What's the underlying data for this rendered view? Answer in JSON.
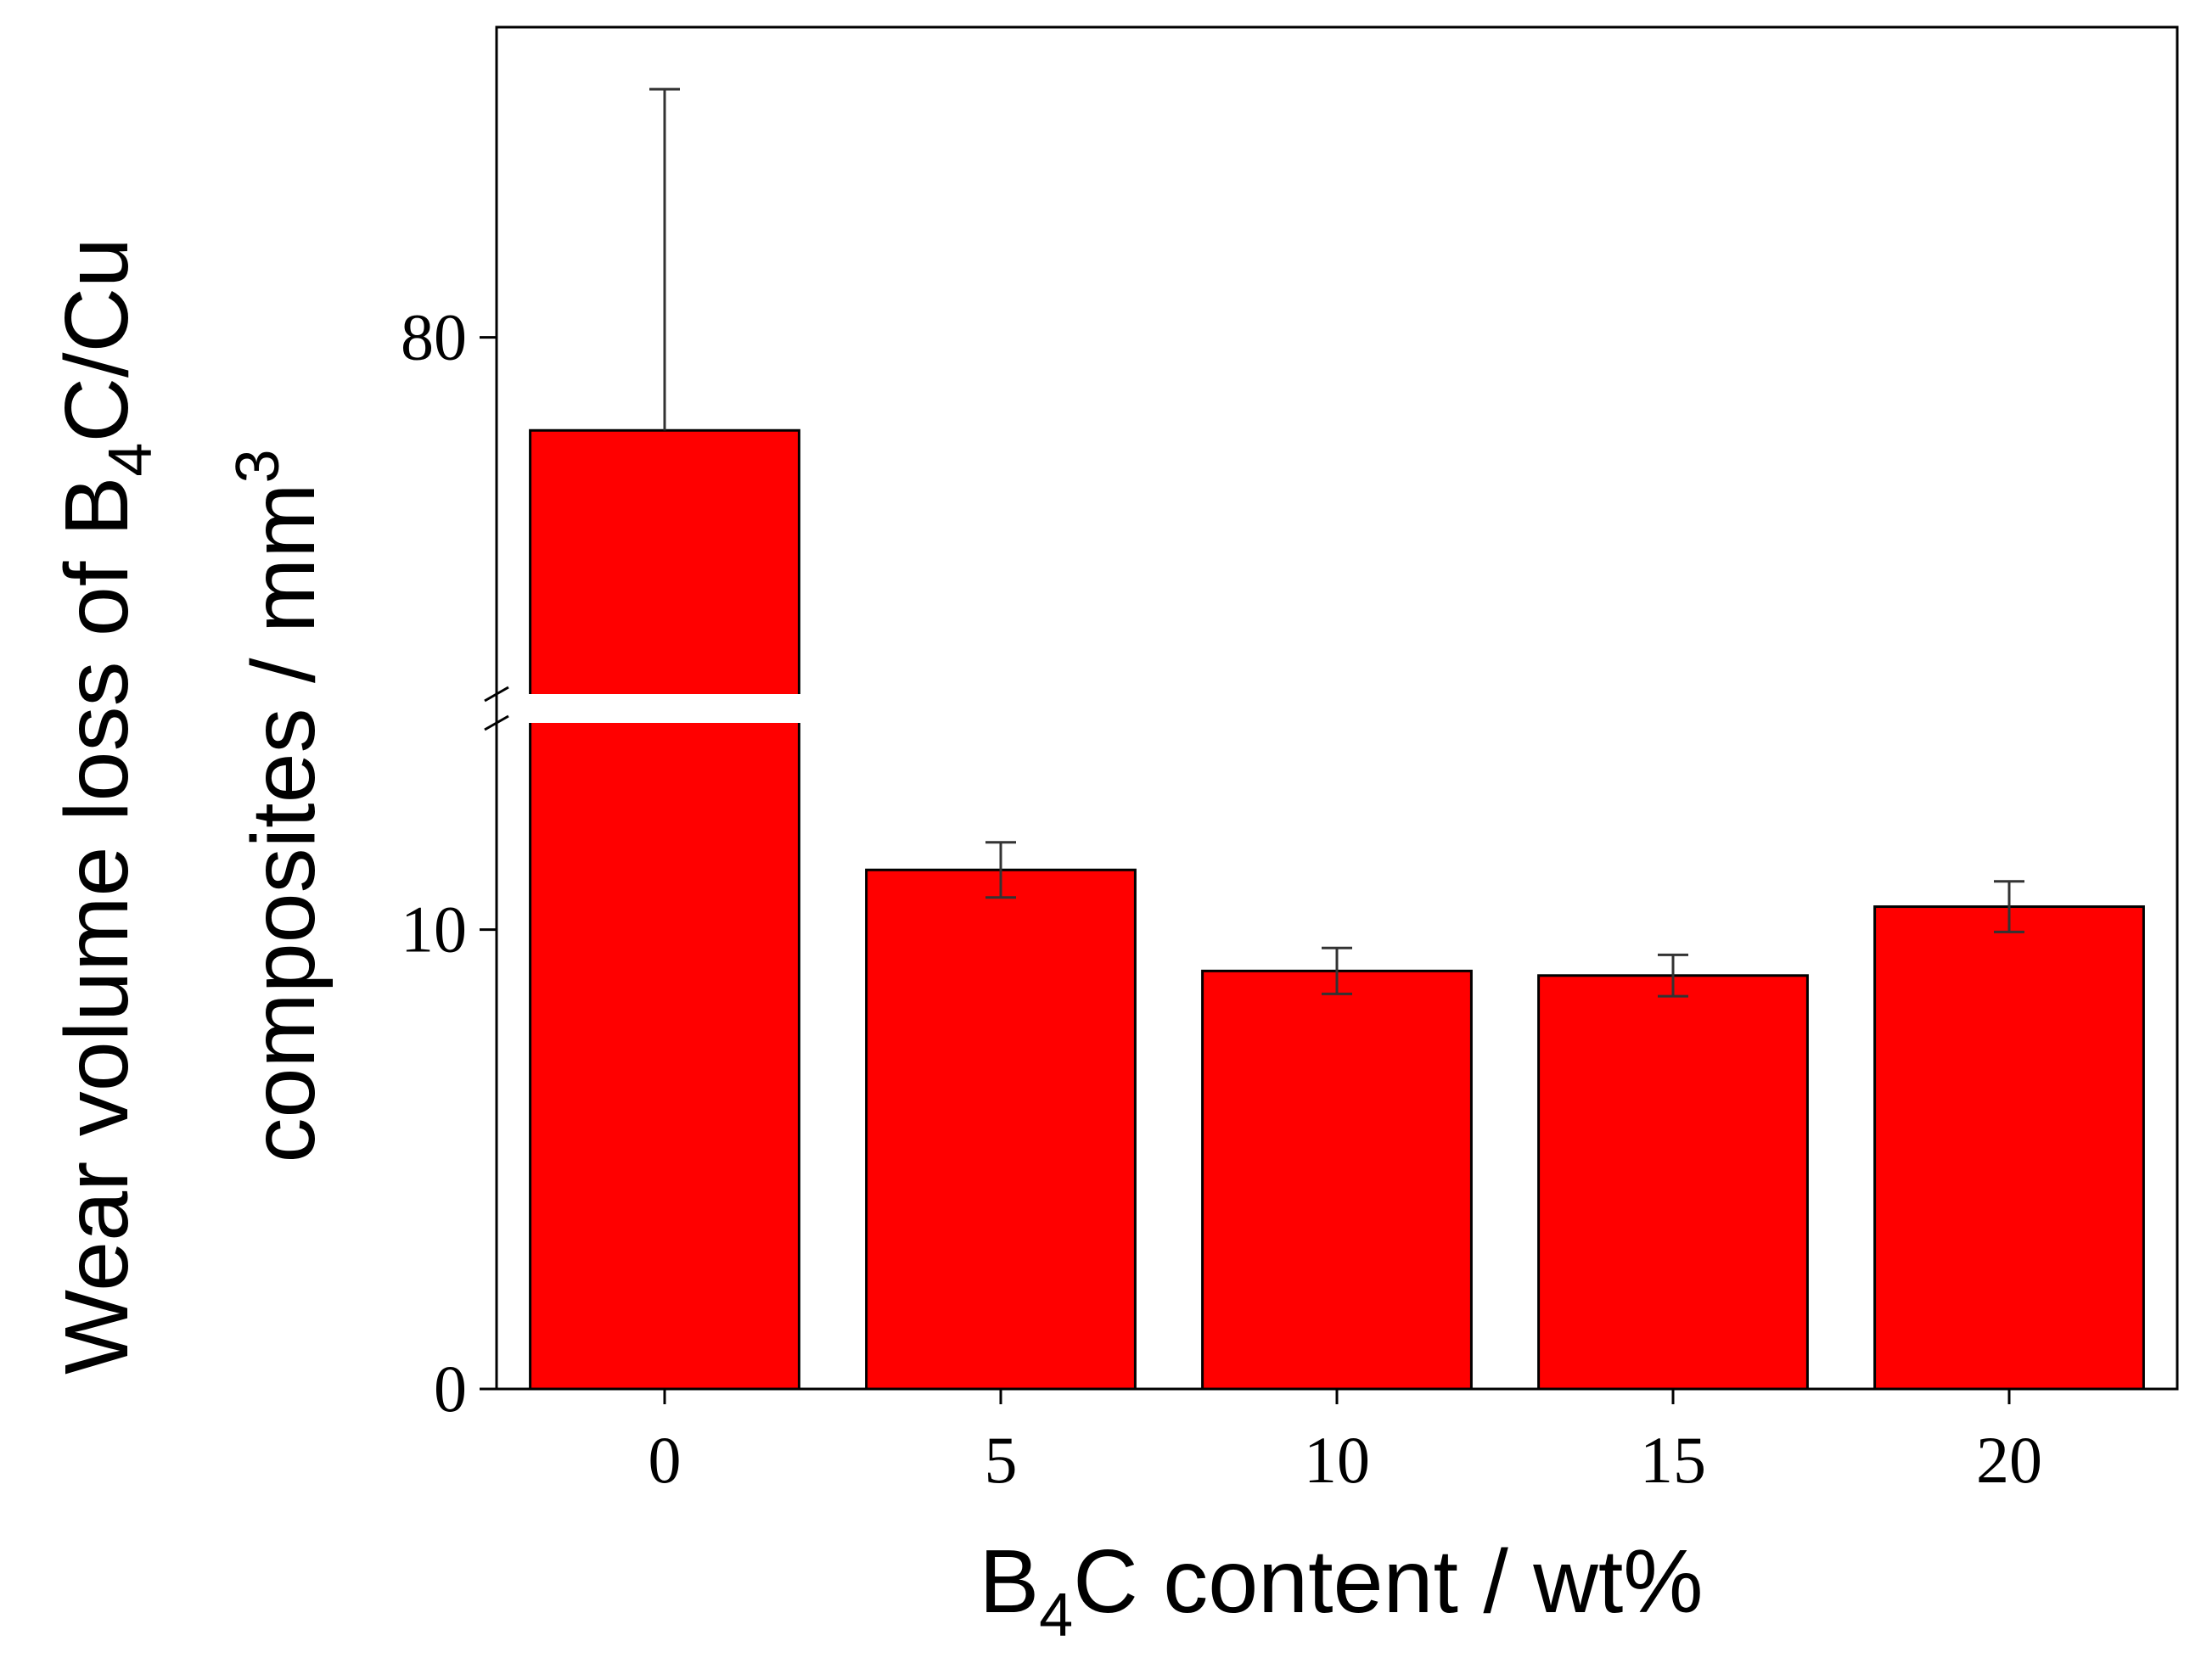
{
  "chart_data": {
    "type": "bar",
    "categories": [
      "0",
      "5",
      "10",
      "15",
      "20"
    ],
    "values": [
      74,
      11.3,
      9.1,
      9.0,
      10.5
    ],
    "errors": [
      22,
      0.6,
      0.5,
      0.45,
      0.55
    ],
    "bar_color": "#ff0000",
    "axis_break": {
      "lower_max": 14.5,
      "upper_min": 57
    },
    "ylim_lower": [
      0,
      14.5
    ],
    "ylim_upper": [
      57,
      100
    ],
    "yticks_lower": [
      0,
      10
    ],
    "yticks_upper": [
      80
    ],
    "ytick_labels": [
      "0",
      "10",
      "80"
    ],
    "xlabel": {
      "prefix": "B",
      "sub": "4",
      "rest": "C content / wt%"
    },
    "ylabel": {
      "line1_prefix": "Wear volume loss of B",
      "line1_sub": "4",
      "line1_rest": "C/Cu",
      "line2_prefix": "composites / mm",
      "line2_sup": "3"
    }
  }
}
